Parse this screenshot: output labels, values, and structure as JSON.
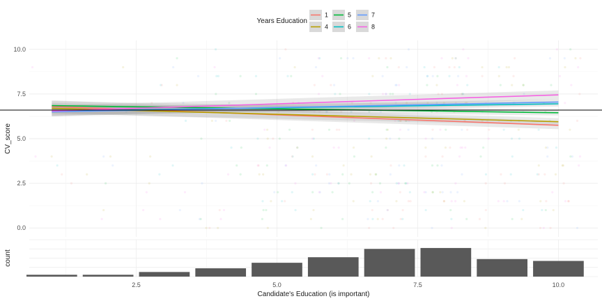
{
  "chart_data": [
    {
      "type": "line",
      "panel": "main",
      "xlabel": "",
      "ylabel": "CV_score",
      "xlim": [
        0.6,
        10.7
      ],
      "ylim": [
        -0.5,
        10.5
      ],
      "y_ticks": [
        0.0,
        2.5,
        5.0,
        7.5,
        10.0
      ],
      "y_tick_labels": [
        "0.0",
        "2.5",
        "5.0",
        "7.5",
        "10.0"
      ],
      "grid": true,
      "reference_line": {
        "y": 6.6
      },
      "legend": {
        "title": "Years Education",
        "placement": "top",
        "entries": [
          "1",
          "4",
          "5",
          "6",
          "7",
          "8"
        ]
      },
      "x": [
        1,
        10
      ],
      "series": [
        {
          "name": "1",
          "color": "#F8766D",
          "values": [
            6.8,
            5.75
          ],
          "band": [
            0.35,
            0.22
          ]
        },
        {
          "name": "4",
          "color": "#B79F00",
          "values": [
            6.7,
            5.95
          ],
          "band": [
            0.3,
            0.2
          ]
        },
        {
          "name": "5",
          "color": "#00BA38",
          "values": [
            6.85,
            6.45
          ],
          "band": [
            0.25,
            0.15
          ]
        },
        {
          "name": "6",
          "color": "#00BFC4",
          "values": [
            6.55,
            6.95
          ],
          "band": [
            0.25,
            0.15
          ]
        },
        {
          "name": "7",
          "color": "#619CFF",
          "values": [
            6.5,
            7.05
          ],
          "band": [
            0.25,
            0.15
          ]
        },
        {
          "name": "8",
          "color": "#F564E3",
          "values": [
            6.55,
            7.45
          ],
          "band": [
            0.3,
            0.25
          ]
        }
      ]
    },
    {
      "type": "bar",
      "panel": "bottom",
      "xlabel": "Candidate's Education (is important)",
      "ylabel": "count",
      "x_ticks": [
        2.5,
        5.0,
        7.5,
        10.0
      ],
      "x_tick_labels": [
        "2.5",
        "5.0",
        "7.5",
        "10.0"
      ],
      "categories": [
        1,
        2,
        3,
        4,
        5,
        6,
        7,
        8,
        9,
        10
      ],
      "values": [
        2,
        2,
        5,
        9,
        15,
        21,
        30,
        31,
        19,
        17
      ],
      "ylim": [
        0,
        40
      ],
      "bar_color": "#595959",
      "grid": true
    }
  ]
}
